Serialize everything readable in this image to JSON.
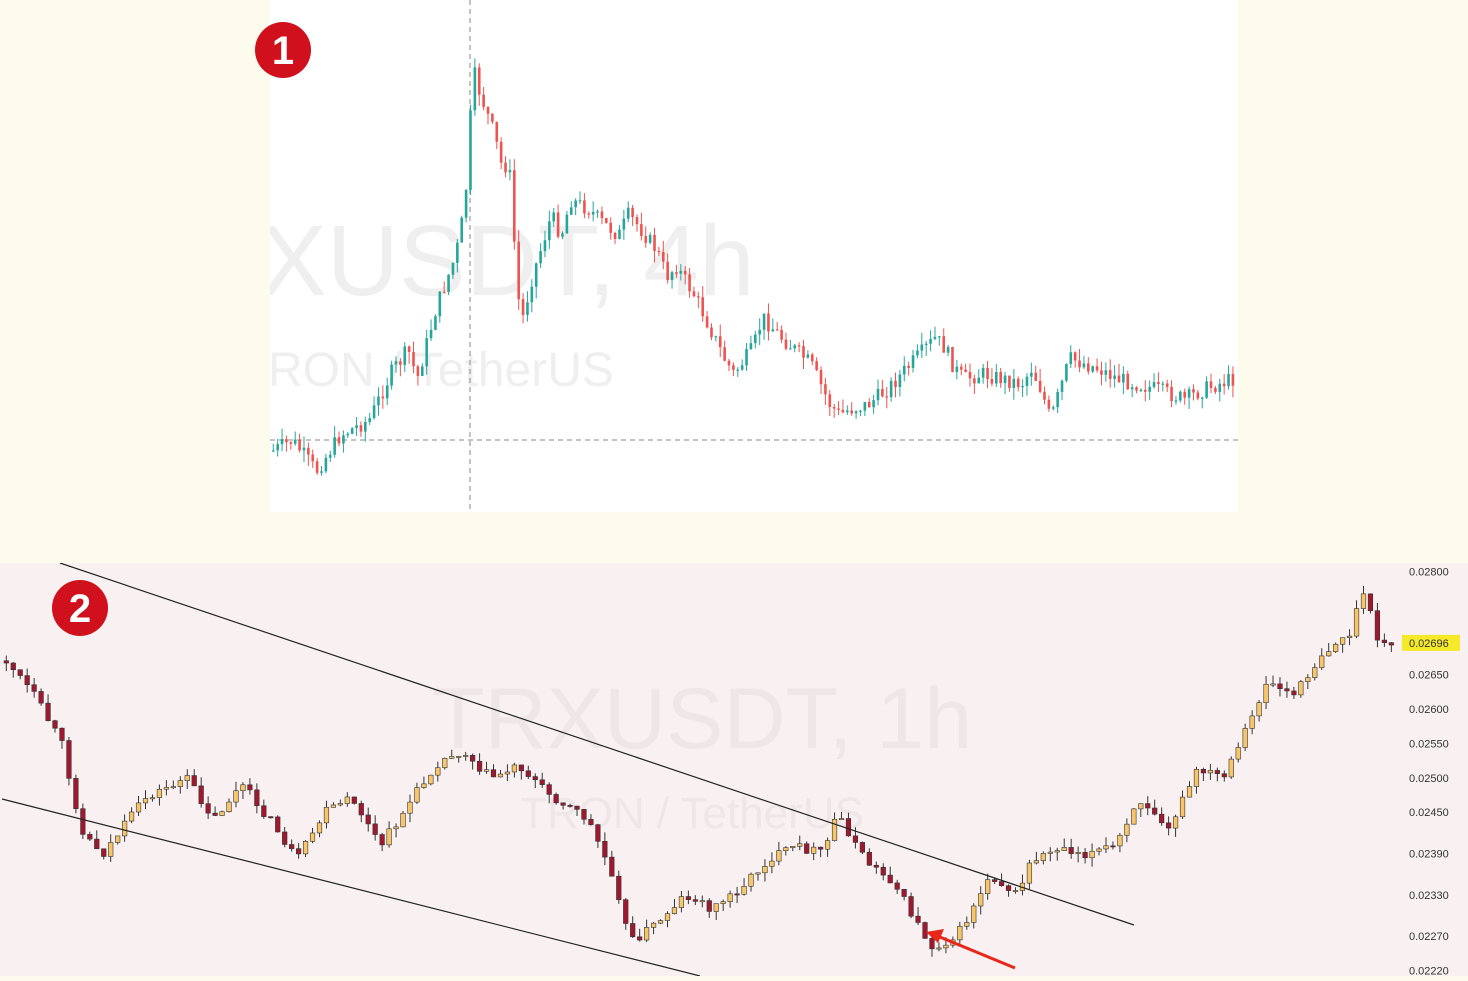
{
  "colors": {
    "page_bg": "#fdfbeb",
    "chart1_bg": "#ffffff",
    "chart2_bg": "#f9f1f1",
    "up_candle_1": "#26a69a",
    "down_candle_1": "#ef5350",
    "up_candle_2": "#f7c66a",
    "down_candle_2": "#a0182e",
    "badge": "#d0101c",
    "trendline": "#222222",
    "arrow": "#e8271a",
    "price_tag": "#f5ea2a"
  },
  "panels": [
    {
      "badge": "1",
      "watermark_symbol": "XUSDT, 4h",
      "watermark_pair": "RON / TetherUS"
    },
    {
      "badge": "2",
      "watermark_symbol": "TRXUSDT, 1h",
      "watermark_pair": "TRON / TetherUS",
      "current_price": "0.02696"
    }
  ],
  "chart_data": [
    {
      "type": "candlestick",
      "title": "XUSDT, 4h",
      "subtitle": "RON / TetherUS",
      "close_path": [
        [
          0,
          0.88
        ],
        [
          0.02,
          0.86
        ],
        [
          0.045,
          0.92
        ],
        [
          0.07,
          0.85
        ],
        [
          0.1,
          0.82
        ],
        [
          0.125,
          0.72
        ],
        [
          0.135,
          0.7
        ],
        [
          0.14,
          0.68
        ],
        [
          0.15,
          0.74
        ],
        [
          0.17,
          0.6
        ],
        [
          0.18,
          0.55
        ],
        [
          0.19,
          0.5
        ],
        [
          0.2,
          0.4
        ],
        [
          0.205,
          0.22
        ],
        [
          0.21,
          0.3
        ],
        [
          0.2,
          0.08
        ],
        [
          0.215,
          0.18
        ],
        [
          0.23,
          0.26
        ],
        [
          0.24,
          0.34
        ],
        [
          0.245,
          0.3
        ],
        [
          0.25,
          0.44
        ],
        [
          0.255,
          0.58
        ],
        [
          0.26,
          0.62
        ],
        [
          0.27,
          0.54
        ],
        [
          0.28,
          0.48
        ],
        [
          0.29,
          0.42
        ],
        [
          0.3,
          0.46
        ],
        [
          0.31,
          0.39
        ],
        [
          0.33,
          0.41
        ],
        [
          0.34,
          0.43
        ],
        [
          0.36,
          0.46
        ],
        [
          0.37,
          0.42
        ],
        [
          0.38,
          0.44
        ],
        [
          0.4,
          0.49
        ],
        [
          0.41,
          0.54
        ],
        [
          0.42,
          0.52
        ],
        [
          0.44,
          0.58
        ],
        [
          0.46,
          0.66
        ],
        [
          0.47,
          0.7
        ],
        [
          0.48,
          0.73
        ],
        [
          0.5,
          0.68
        ],
        [
          0.51,
          0.62
        ],
        [
          0.53,
          0.66
        ],
        [
          0.56,
          0.71
        ],
        [
          0.58,
          0.79
        ],
        [
          0.59,
          0.81
        ],
        [
          0.6,
          0.8
        ],
        [
          0.62,
          0.79
        ],
        [
          0.64,
          0.76
        ],
        [
          0.66,
          0.72
        ],
        [
          0.69,
          0.66
        ],
        [
          0.7,
          0.68
        ],
        [
          0.71,
          0.72
        ],
        [
          0.72,
          0.74
        ],
        [
          0.74,
          0.73
        ],
        [
          0.76,
          0.74
        ],
        [
          0.78,
          0.75
        ],
        [
          0.79,
          0.72
        ],
        [
          0.8,
          0.76
        ],
        [
          0.81,
          0.82
        ],
        [
          0.82,
          0.76
        ],
        [
          0.83,
          0.7
        ],
        [
          0.86,
          0.72
        ],
        [
          0.88,
          0.74
        ],
        [
          0.9,
          0.75
        ],
        [
          0.92,
          0.76
        ],
        [
          0.95,
          0.78
        ],
        [
          0.97,
          0.76
        ],
        [
          1,
          0.74
        ]
      ],
      "dashed_support_level": "horizontal dashed line near lows",
      "vertical_crosshair": true
    },
    {
      "type": "candlestick",
      "title": "TRXUSDT, 1h",
      "subtitle": "TRON / TetherUS",
      "y_axis_ticks": [
        "0.02800",
        "0.02696",
        "0.02650",
        "0.02600",
        "0.02550",
        "0.02500",
        "0.02450",
        "0.02390",
        "0.02330",
        "0.02270",
        "0.02220"
      ],
      "current_price": 0.02696,
      "close_path": [
        [
          0,
          0.0267
        ],
        [
          0.02,
          0.0262
        ],
        [
          0.04,
          0.0255
        ],
        [
          0.055,
          0.0242
        ],
        [
          0.07,
          0.0239
        ],
        [
          0.1,
          0.0247
        ],
        [
          0.13,
          0.025
        ],
        [
          0.15,
          0.0244
        ],
        [
          0.17,
          0.0249
        ],
        [
          0.19,
          0.0244
        ],
        [
          0.21,
          0.0238
        ],
        [
          0.23,
          0.0245
        ],
        [
          0.25,
          0.0247
        ],
        [
          0.27,
          0.024
        ],
        [
          0.29,
          0.0246
        ],
        [
          0.31,
          0.0252
        ],
        [
          0.33,
          0.0254
        ],
        [
          0.35,
          0.025
        ],
        [
          0.37,
          0.0252
        ],
        [
          0.39,
          0.0248
        ],
        [
          0.42,
          0.0244
        ],
        [
          0.44,
          0.0235
        ],
        [
          0.45,
          0.0226
        ],
        [
          0.47,
          0.0229
        ],
        [
          0.49,
          0.0233
        ],
        [
          0.51,
          0.0231
        ],
        [
          0.53,
          0.0234
        ],
        [
          0.55,
          0.0238
        ],
        [
          0.57,
          0.024
        ],
        [
          0.59,
          0.0239
        ],
        [
          0.6,
          0.0245
        ],
        [
          0.62,
          0.0238
        ],
        [
          0.64,
          0.0235
        ],
        [
          0.66,
          0.0228
        ],
        [
          0.67,
          0.0225
        ],
        [
          0.69,
          0.0228
        ],
        [
          0.71,
          0.0236
        ],
        [
          0.73,
          0.0233
        ],
        [
          0.74,
          0.0238
        ],
        [
          0.76,
          0.024
        ],
        [
          0.78,
          0.0239
        ],
        [
          0.8,
          0.024
        ],
        [
          0.82,
          0.0247
        ],
        [
          0.84,
          0.0243
        ],
        [
          0.86,
          0.0251
        ],
        [
          0.88,
          0.025
        ],
        [
          0.9,
          0.0259
        ],
        [
          0.91,
          0.0264
        ],
        [
          0.93,
          0.0262
        ],
        [
          0.95,
          0.0268
        ],
        [
          0.97,
          0.0271
        ],
        [
          0.98,
          0.0277
        ],
        [
          0.99,
          0.027
        ],
        [
          1,
          0.02696
        ]
      ],
      "trendlines": [
        "upper descending trendline",
        "lower descending trendline"
      ],
      "annotation": "red arrow pointing to local low"
    }
  ]
}
